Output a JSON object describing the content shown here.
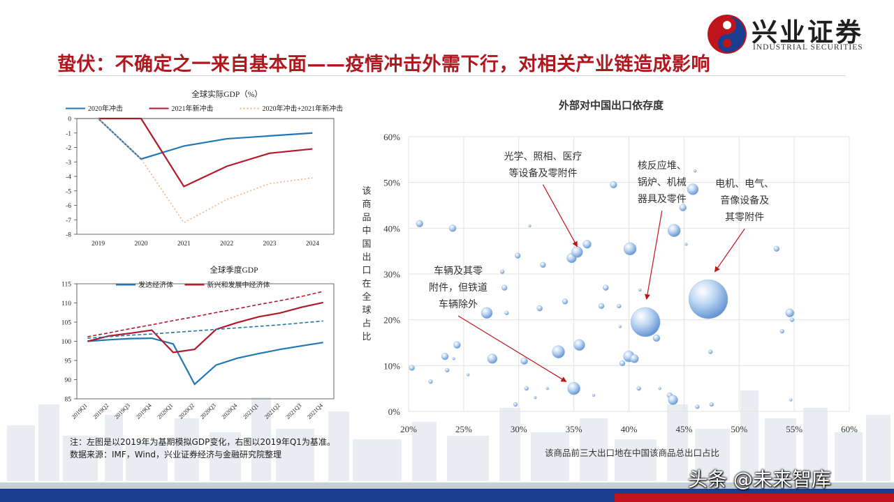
{
  "header": {
    "title": "蛰伏：不确定之一来自基本面——疫情冲击外需下行，对相关产业链造成影响",
    "logo_cn": "兴业证券",
    "logo_en": "INDUSTRIAL SECURITIES"
  },
  "notes": {
    "line1": "注：左图是以2019年为基期模拟GDP变化，右图以2019年Q1为基准。",
    "line2": "数据来源：IMF，Wind，兴业证券经济与金融研究院整理"
  },
  "watermark": "头条 @未来智库",
  "colors": {
    "brand_red": "#b01820",
    "brand_blue": "#1b3d8f",
    "series_blue": "#1f77b4",
    "series_red": "#b2182b",
    "series_dotted": "#f4b183"
  },
  "chart_data": [
    {
      "type": "line",
      "title": "全球实际GDP（%）",
      "x": [
        "2019",
        "2020",
        "2021",
        "2022",
        "2023",
        "2024"
      ],
      "ylim": [
        -8,
        0
      ],
      "yticks": [
        "0",
        "-1",
        "-2",
        "-3",
        "-4",
        "-5",
        "-6",
        "-7",
        "-8"
      ],
      "legend_position": "top",
      "series": [
        {
          "name": "2020年冲击",
          "color": "#1f77b4",
          "style": "solid",
          "values": [
            0,
            -2.8,
            -1.9,
            -1.4,
            -1.2,
            -1.0
          ]
        },
        {
          "name": "2021年新冲击",
          "color": "#b2182b",
          "style": "solid",
          "values": [
            0,
            0,
            -4.7,
            -3.3,
            -2.4,
            -2.1
          ]
        },
        {
          "name": "2020年冲击+2021年新冲击",
          "color": "#f4b183",
          "style": "dotted",
          "values": [
            0,
            -2.8,
            -7.2,
            -5.6,
            -4.5,
            -4.1
          ]
        }
      ]
    },
    {
      "type": "line",
      "title": "全球季度GDP",
      "x": [
        "2019Q1",
        "2019Q2",
        "2019Q3",
        "2019Q4",
        "2020Q1",
        "2020Q2",
        "2020Q3",
        "2020Q4",
        "2021Q1",
        "2021Q2",
        "2021Q3",
        "2021Q4"
      ],
      "ylim": [
        85,
        115
      ],
      "yticks": [
        "115",
        "110",
        "105",
        "100",
        "95",
        "90",
        "85"
      ],
      "legend_position": "top",
      "series": [
        {
          "name": "发达经济体",
          "color": "#1f77b4",
          "style": "solid",
          "values": [
            100,
            100.4,
            100.7,
            100.8,
            99.3,
            88.8,
            93.8,
            95.6,
            96.8,
            97.9,
            98.8,
            99.7
          ]
        },
        {
          "name": "新兴和发展中经济体",
          "color": "#b2182b",
          "style": "solid",
          "values": [
            100,
            101.4,
            102.1,
            102.9,
            97.1,
            97.9,
            103.1,
            104.9,
            106.4,
            107.4,
            108.9,
            110.1
          ]
        },
        {
          "name": "",
          "color": "#1f77b4",
          "style": "dashed",
          "values": [
            100.8,
            101.2,
            101.6,
            101.9,
            102.3,
            102.7,
            103.1,
            103.5,
            103.9,
            104.3,
            104.8,
            105.3
          ]
        },
        {
          "name": "",
          "color": "#b2182b",
          "style": "dashed",
          "values": [
            101.2,
            102.2,
            103.3,
            104.3,
            105.4,
            106.4,
            107.5,
            108.5,
            109.6,
            110.6,
            111.7,
            113.0
          ]
        }
      ]
    },
    {
      "type": "scatter",
      "title": "外部对中国出口依存度",
      "xlabel": "该商品前三大出口地在中国该商品总出口占比",
      "ylabel": "该商品中国出口在全球占比",
      "xlim": [
        20,
        60
      ],
      "ylim": [
        0,
        60
      ],
      "xticks": [
        "20%",
        "25%",
        "30%",
        "35%",
        "40%",
        "45%",
        "50%",
        "55%",
        "60%"
      ],
      "yticks": [
        "60%",
        "50%",
        "40%",
        "30%",
        "20%",
        "10%",
        "0%"
      ],
      "grid": true,
      "points": [
        {
          "x": 21.0,
          "y": 41.0,
          "s": 5
        },
        {
          "x": 24.0,
          "y": 40.0,
          "s": 5
        },
        {
          "x": 20.3,
          "y": 9.5,
          "s": 4
        },
        {
          "x": 22.0,
          "y": 6.5,
          "s": 3
        },
        {
          "x": 23.3,
          "y": 12.0,
          "s": 5
        },
        {
          "x": 24.4,
          "y": 14.5,
          "s": 5
        },
        {
          "x": 23.5,
          "y": 9.0,
          "s": 3
        },
        {
          "x": 24.1,
          "y": 11.5,
          "s": 2
        },
        {
          "x": 25.4,
          "y": 8.0,
          "s": 2
        },
        {
          "x": 27.6,
          "y": 11.5,
          "s": 7
        },
        {
          "x": 27.1,
          "y": 21.5,
          "s": 8
        },
        {
          "x": 28.5,
          "y": 30.5,
          "s": 3
        },
        {
          "x": 28.7,
          "y": 27.0,
          "s": 4
        },
        {
          "x": 28.9,
          "y": 21.5,
          "s": 3
        },
        {
          "x": 29.7,
          "y": 1.5,
          "s": 3
        },
        {
          "x": 29.9,
          "y": 34.0,
          "s": 4
        },
        {
          "x": 30.5,
          "y": 11.0,
          "s": 5
        },
        {
          "x": 30.7,
          "y": 5.0,
          "s": 3
        },
        {
          "x": 31.0,
          "y": 40.5,
          "s": 2
        },
        {
          "x": 31.5,
          "y": 3.0,
          "s": 2
        },
        {
          "x": 31.9,
          "y": 22.5,
          "s": 4
        },
        {
          "x": 32.2,
          "y": 32.0,
          "s": 4
        },
        {
          "x": 32.6,
          "y": 5.0,
          "s": 2
        },
        {
          "x": 33.6,
          "y": 13.0,
          "s": 9
        },
        {
          "x": 34.2,
          "y": 24.0,
          "s": 4
        },
        {
          "x": 34.8,
          "y": 33.5,
          "s": 7
        },
        {
          "x": 35.3,
          "y": 34.8,
          "s": 8
        },
        {
          "x": 36.2,
          "y": 36.5,
          "s": 6
        },
        {
          "x": 35.0,
          "y": 5.0,
          "s": 9
        },
        {
          "x": 35.5,
          "y": 14.5,
          "s": 8
        },
        {
          "x": 36.8,
          "y": 3.5,
          "s": 2
        },
        {
          "x": 37.5,
          "y": 23.0,
          "s": 4
        },
        {
          "x": 37.9,
          "y": 27.0,
          "s": 4
        },
        {
          "x": 38.6,
          "y": 49.5,
          "s": 5
        },
        {
          "x": 39.1,
          "y": 23.0,
          "s": 3
        },
        {
          "x": 39.2,
          "y": 18.5,
          "s": 2
        },
        {
          "x": 39.4,
          "y": 10.5,
          "s": 4
        },
        {
          "x": 40.0,
          "y": 12.0,
          "s": 8
        },
        {
          "x": 40.1,
          "y": 35.5,
          "s": 9
        },
        {
          "x": 40.5,
          "y": 11.5,
          "s": 6
        },
        {
          "x": 40.9,
          "y": 5.0,
          "s": 3
        },
        {
          "x": 41.0,
          "y": 26.5,
          "s": 2
        },
        {
          "x": 41.5,
          "y": 19.5,
          "s": 21
        },
        {
          "x": 42.5,
          "y": 16.0,
          "s": 5
        },
        {
          "x": 42.8,
          "y": 5.0,
          "s": 2
        },
        {
          "x": 43.7,
          "y": 3.5,
          "s": 4
        },
        {
          "x": 44.0,
          "y": 2.5,
          "s": 7
        },
        {
          "x": 44.1,
          "y": 39.5,
          "s": 9
        },
        {
          "x": 44.9,
          "y": 44.5,
          "s": 5
        },
        {
          "x": 45.2,
          "y": 36.5,
          "s": 2
        },
        {
          "x": 45.8,
          "y": 48.5,
          "s": 8
        },
        {
          "x": 46.0,
          "y": 52.5,
          "s": 2
        },
        {
          "x": 46.2,
          "y": 1.0,
          "s": 3
        },
        {
          "x": 47.2,
          "y": 24.5,
          "s": 28
        },
        {
          "x": 47.4,
          "y": 13.0,
          "s": 3
        },
        {
          "x": 47.5,
          "y": 1.5,
          "s": 3
        },
        {
          "x": 53.4,
          "y": 35.5,
          "s": 4
        },
        {
          "x": 53.9,
          "y": 17.5,
          "s": 3
        },
        {
          "x": 54.6,
          "y": 21.5,
          "s": 6
        },
        {
          "x": 54.8,
          "y": 20.0,
          "s": 3
        },
        {
          "x": 54.7,
          "y": 2.5,
          "s": 2
        }
      ],
      "annotations": [
        {
          "lines": [
            "光学、照相、医疗",
            "等设备及零附件"
          ],
          "text_x": 32.2,
          "text_y": 55.0,
          "tx": 35.3,
          "ty": 36.0
        },
        {
          "lines": [
            "核反应堆、",
            "锅炉、机械",
            "器具及零件"
          ],
          "text_x": 43.0,
          "text_y": 53.0,
          "tx": 41.6,
          "ty": 24.5
        },
        {
          "lines": [
            "电机、电气、",
            "音像设备及",
            "其零附件"
          ],
          "text_x": 50.5,
          "text_y": 49.0,
          "tx": 47.8,
          "ty": 30.5
        },
        {
          "lines": [
            "车辆及其零",
            "附件，但铁道",
            "车辆除外"
          ],
          "text_x": 24.5,
          "text_y": 30.0,
          "tx": 34.3,
          "ty": 6.5
        }
      ]
    }
  ]
}
